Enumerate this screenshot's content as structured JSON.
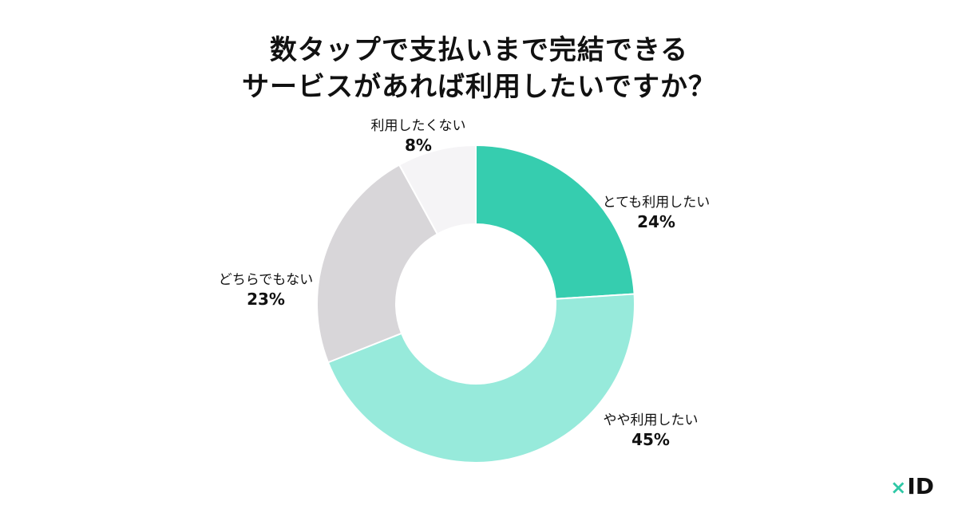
{
  "title": {
    "line1": "数タップで支払いまで完結できる",
    "line2": "サービスがあれば利用したいですか？"
  },
  "chart_data": {
    "type": "pie",
    "donut": true,
    "title": "数タップで支払いまで完結できるサービスがあれば利用したいですか？",
    "unit": "%",
    "slices": [
      {
        "label": "とても利用したい",
        "value": 24,
        "pct_label": "24%",
        "color": "#36cdaf"
      },
      {
        "label": "やや利用したい",
        "value": 45,
        "pct_label": "45%",
        "color": "#97eadb"
      },
      {
        "label": "どちらでもない",
        "value": 23,
        "pct_label": "23%",
        "color": "#d8d6d9"
      },
      {
        "label": "利用したくない",
        "value": 8,
        "pct_label": "8%",
        "color": "#f5f4f6"
      }
    ]
  },
  "logo": {
    "mark": "×",
    "text": "ID"
  }
}
